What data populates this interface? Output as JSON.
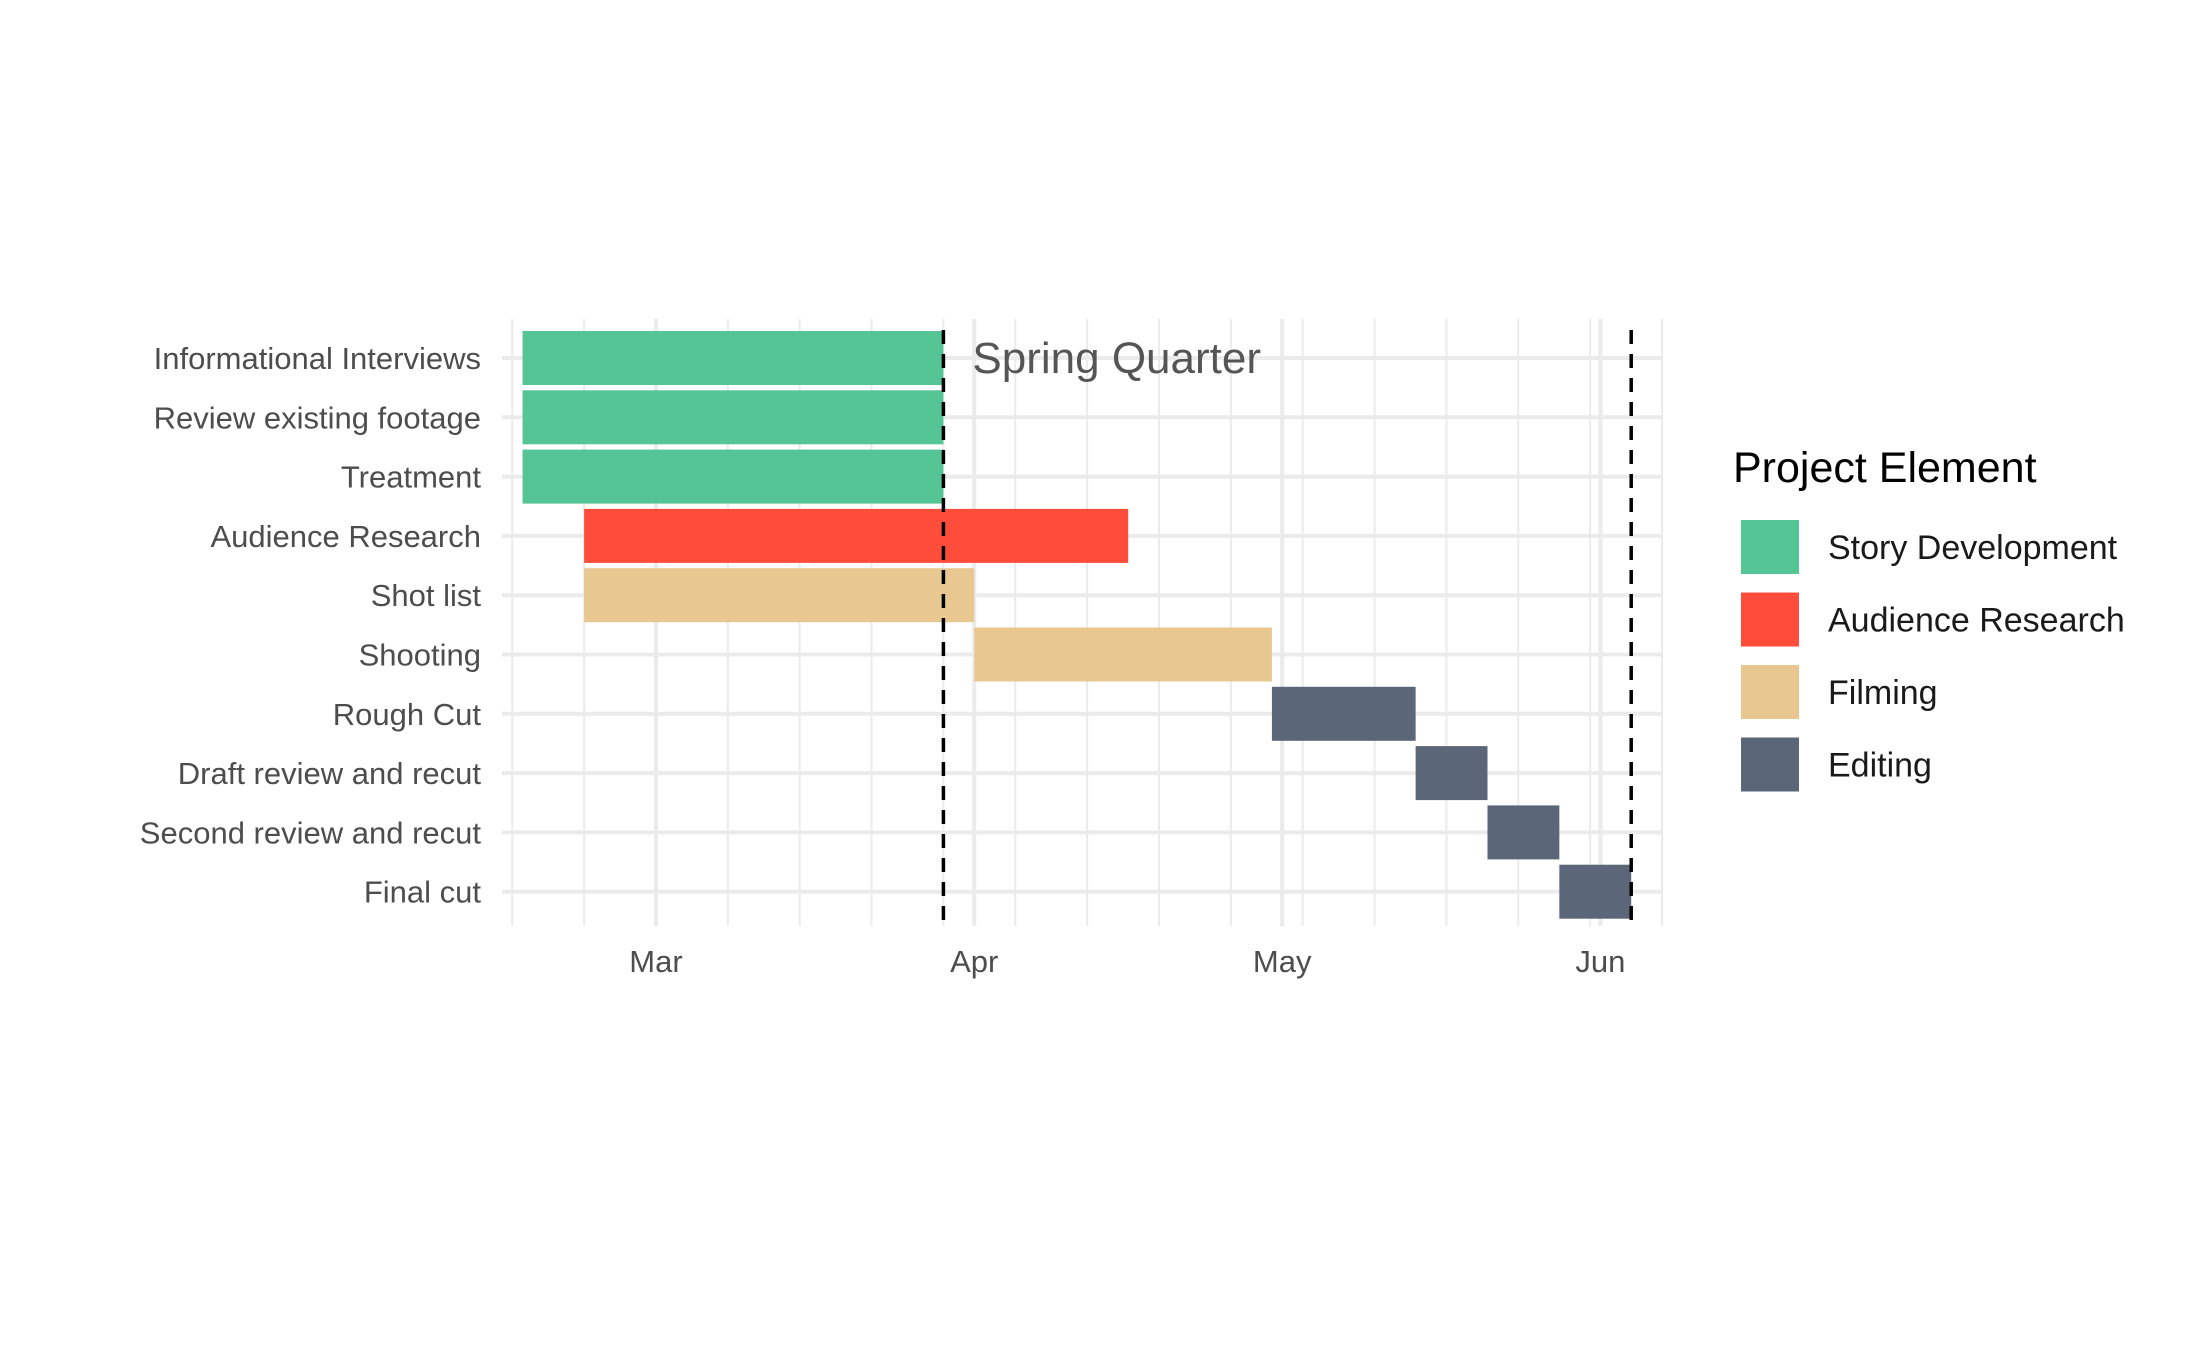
{
  "chart_data": {
    "type": "gantt",
    "title": "",
    "xlabel": "",
    "ylabel": "",
    "xlim": [
      "2022-02-14",
      "2022-06-07"
    ],
    "x_ticks": [
      {
        "date": "2022-03-01",
        "label": "Mar"
      },
      {
        "date": "2022-04-01",
        "label": "Apr"
      },
      {
        "date": "2022-05-01",
        "label": "May"
      },
      {
        "date": "2022-06-01",
        "label": "Jun"
      }
    ],
    "grid": true,
    "tasks": [
      {
        "name": "Informational Interviews",
        "category": "Story Development",
        "start": "2022-02-16",
        "end": "2022-03-29"
      },
      {
        "name": "Review existing footage",
        "category": "Story Development",
        "start": "2022-02-16",
        "end": "2022-03-29"
      },
      {
        "name": "Treatment",
        "category": "Story Development",
        "start": "2022-02-16",
        "end": "2022-03-29"
      },
      {
        "name": "Audience Research",
        "category": "Audience Research",
        "start": "2022-02-22",
        "end": "2022-04-16"
      },
      {
        "name": "Shot list",
        "category": "Filming",
        "start": "2022-02-22",
        "end": "2022-04-01"
      },
      {
        "name": "Shooting",
        "category": "Filming",
        "start": "2022-04-01",
        "end": "2022-04-30"
      },
      {
        "name": "Rough Cut",
        "category": "Editing",
        "start": "2022-04-30",
        "end": "2022-05-14"
      },
      {
        "name": "Draft review and recut",
        "category": "Editing",
        "start": "2022-05-14",
        "end": "2022-05-21"
      },
      {
        "name": "Second review and recut",
        "category": "Editing",
        "start": "2022-05-21",
        "end": "2022-05-28"
      },
      {
        "name": "Final cut",
        "category": "Editing",
        "start": "2022-05-28",
        "end": "2022-06-04"
      }
    ],
    "vlines": [
      {
        "date": "2022-03-29",
        "style": "dashed"
      },
      {
        "date": "2022-06-04",
        "style": "dashed"
      }
    ],
    "annotation": {
      "text": "Spring Quarter",
      "date": "2022-03-29"
    },
    "legend": {
      "title": "Project Element",
      "placement": "right",
      "entries": [
        {
          "label": "Story Development",
          "color": "#56c596"
        },
        {
          "label": "Audience Research",
          "color": "#ff4c3b"
        },
        {
          "label": "Filming",
          "color": "#e9c790"
        },
        {
          "label": "Editing",
          "color": "#5b6778"
        }
      ]
    }
  }
}
